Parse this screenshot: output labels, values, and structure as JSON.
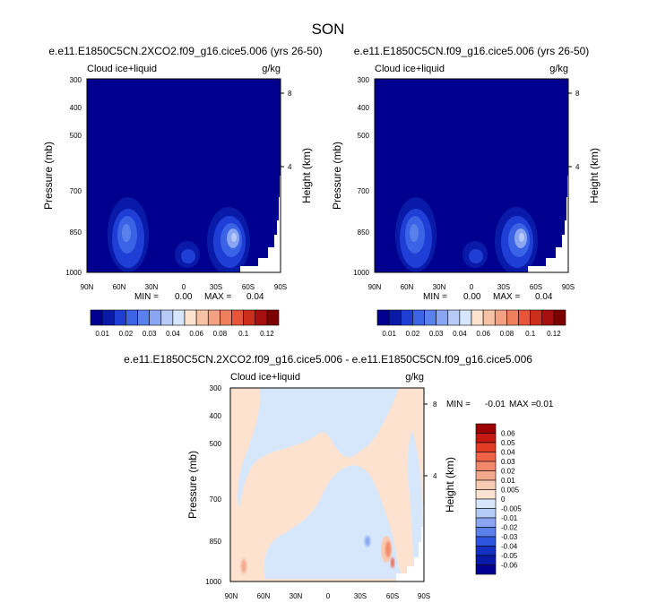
{
  "title": "SON",
  "colors": {
    "deep_blue": "#00008e",
    "mid_blue": "#1e3ed6",
    "light_blue": "#5a80ec",
    "pale_blue": "#d7e7fb",
    "pale_orange": "#fde3cf",
    "orange": "#f2a183",
    "red": "#e8553a"
  },
  "chart_data": [
    {
      "id": "panel1",
      "type": "contour",
      "title": "e.e11.E1850C5CN.2XCO2.f09_g16.cice5.006 (yrs 26-50)",
      "field_label": "Cloud ice+liquid",
      "units": "g/kg",
      "ylabel": "Pressure (mb)",
      "ylabel_right": "Height (km)",
      "x_ticks": [
        "90N",
        "60N",
        "30N",
        "0",
        "30S",
        "60S",
        "90S"
      ],
      "y_ticks": [
        300,
        400,
        500,
        700,
        850,
        1000
      ],
      "y_right_ticks": [
        8,
        4
      ],
      "y_scale": "log",
      "stats": {
        "min_label": "MIN =",
        "min": "0.00",
        "max_label": "MAX =",
        "max": "0.04"
      },
      "colorbar_labels": [
        "0.01",
        "0.02",
        "0.03",
        "0.04",
        "0.06",
        "0.08",
        "0.1",
        "0.12"
      ],
      "colorbar_colors": [
        "#00008e",
        "#0a1aa8",
        "#1e3ed6",
        "#3a63e6",
        "#5a80ec",
        "#8aa6f2",
        "#b6c9f7",
        "#d7e7fb",
        "#fde3cf",
        "#f7c2a6",
        "#f2a183",
        "#ee7f5d",
        "#e8553a",
        "#cc2d1c",
        "#a80f0f",
        "#7c0000"
      ],
      "maxima": [
        {
          "lat": 64,
          "p": 855,
          "value": 0.04
        },
        {
          "lat": -40,
          "p": 845,
          "value": 0.04
        },
        {
          "lat": 2,
          "p": 935,
          "value": 0.02
        }
      ]
    },
    {
      "id": "panel2",
      "type": "contour",
      "title": "e.e11.E1850C5CN.f09_g16.cice5.006 (yrs 26-50)",
      "field_label": "Cloud ice+liquid",
      "units": "g/kg",
      "ylabel": "Pressure (mb)",
      "ylabel_right": "Height (km)",
      "x_ticks": [
        "90N",
        "60N",
        "30N",
        "0",
        "30S",
        "60S",
        "90S"
      ],
      "y_ticks": [
        300,
        400,
        500,
        700,
        850,
        1000
      ],
      "y_right_ticks": [
        8,
        4
      ],
      "y_scale": "log",
      "stats": {
        "min_label": "MIN =",
        "min": "0.00",
        "max_label": "MAX =",
        "max": "0.04"
      },
      "colorbar_labels": [
        "0.01",
        "0.02",
        "0.03",
        "0.04",
        "0.06",
        "0.08",
        "0.1",
        "0.12"
      ],
      "colorbar_colors": [
        "#00008e",
        "#0a1aa8",
        "#1e3ed6",
        "#3a63e6",
        "#5a80ec",
        "#8aa6f2",
        "#b6c9f7",
        "#d7e7fb",
        "#fde3cf",
        "#f7c2a6",
        "#f2a183",
        "#ee7f5d",
        "#e8553a",
        "#cc2d1c",
        "#a80f0f",
        "#7c0000"
      ],
      "maxima": [
        {
          "lat": 64,
          "p": 855,
          "value": 0.04
        },
        {
          "lat": -40,
          "p": 845,
          "value": 0.04
        },
        {
          "lat": 2,
          "p": 935,
          "value": 0.02
        }
      ]
    },
    {
      "id": "panel3",
      "type": "contour",
      "title": "e.e11.E1850C5CN.2XCO2.f09_g16.cice5.006 - e.e11.E1850C5CN.f09_g16.cice5.006",
      "field_label": "Cloud ice+liquid",
      "units": "g/kg",
      "ylabel": "Pressure (mb)",
      "ylabel_right": "Height (km)",
      "x_ticks": [
        "90N",
        "60N",
        "30N",
        "0",
        "30S",
        "60S",
        "90S"
      ],
      "y_ticks": [
        300,
        400,
        500,
        700,
        850,
        1000
      ],
      "y_right_ticks": [
        8,
        4
      ],
      "y_scale": "log",
      "stats": {
        "min_label": "MIN =",
        "min": "-0.01",
        "max_label": "MAX =",
        "max": "0.01"
      },
      "colorbar_labels": [
        "0.06",
        "0.05",
        "0.04",
        "0.03",
        "0.02",
        "0.01",
        "0.005",
        "0",
        "-0.005",
        "-0.01",
        "-0.02",
        "-0.03",
        "-0.04",
        "-0.05",
        "-0.06"
      ],
      "colorbar_colors": [
        "#9c0000",
        "#c41a12",
        "#e23d24",
        "#ef6447",
        "#f2886a",
        "#f5a98c",
        "#f9cbb2",
        "#fde3cf",
        "#d7e7fb",
        "#b3cbf6",
        "#8aa6f2",
        "#5a80ec",
        "#2e55e0",
        "#1430c0",
        "#0a1aa8",
        "#00008e"
      ],
      "maxima": [
        {
          "lat": -63,
          "p": 900,
          "value": 0.01
        },
        {
          "lat": -35,
          "p": 890,
          "value": -0.01
        }
      ]
    }
  ]
}
